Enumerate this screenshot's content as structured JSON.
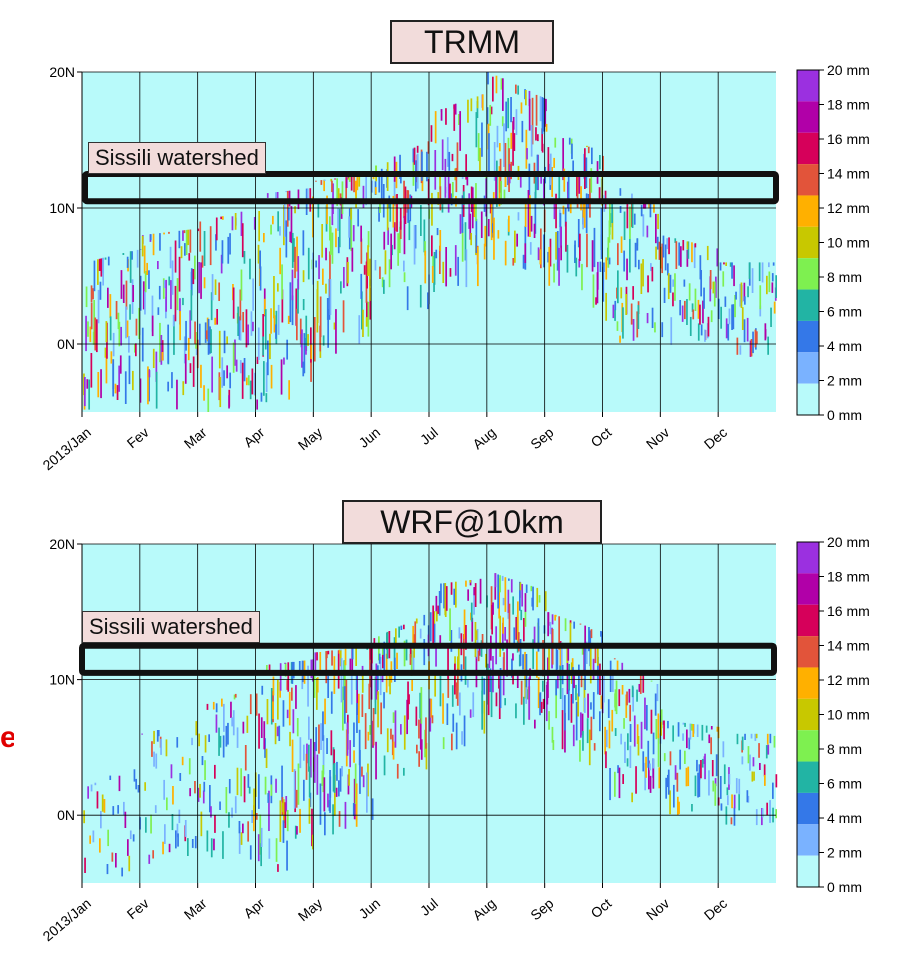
{
  "colorbar": {
    "labels": [
      "20 mm",
      "18 mm",
      "16 mm",
      "14 mm",
      "12 mm",
      "10 mm",
      "8 mm",
      "6 mm",
      "4 mm",
      "2 mm",
      "0 mm"
    ],
    "colors": [
      "#9b30e0",
      "#b100a8",
      "#d6005a",
      "#e2543a",
      "#ffb000",
      "#c8c800",
      "#7ef050",
      "#22b4a4",
      "#3478e8",
      "#7ab2ff",
      "#b8fafa"
    ]
  },
  "side_text": "e",
  "chart_data": [
    {
      "type": "heatmap",
      "title": "TRMM",
      "annotation": "Sissili watershed",
      "xlabel": "",
      "ylabel": "",
      "x_ticks": [
        "2013/Jan",
        "Fev",
        "Mar",
        "Apr",
        "May",
        "Jun",
        "Jul",
        "Aug",
        "Sep",
        "Oct",
        "Nov",
        "Dec"
      ],
      "y_ticks": [
        "20N",
        "10N",
        "0N"
      ],
      "ylim": [
        -5,
        20
      ],
      "watershed_lat": [
        10.5,
        12.5
      ],
      "units": "mm",
      "colorbar_range": [
        0,
        20
      ],
      "monthly_band": [
        {
          "month": "Jan",
          "lat_min": -5,
          "lat_max": 6,
          "intensity": 0.55
        },
        {
          "month": "Fev",
          "lat_min": -5,
          "lat_max": 8,
          "intensity": 0.6
        },
        {
          "month": "Mar",
          "lat_min": -5,
          "lat_max": 9,
          "intensity": 0.6
        },
        {
          "month": "Apr",
          "lat_min": -5,
          "lat_max": 11,
          "intensity": 0.7
        },
        {
          "month": "May",
          "lat_min": -2,
          "lat_max": 12,
          "intensity": 0.7
        },
        {
          "month": "Jun",
          "lat_min": 2,
          "lat_max": 13,
          "intensity": 0.6
        },
        {
          "month": "Jul",
          "lat_min": 3,
          "lat_max": 17,
          "intensity": 0.65
        },
        {
          "month": "Aug",
          "lat_min": 6,
          "lat_max": 20,
          "intensity": 0.75
        },
        {
          "month": "Sep",
          "lat_min": 4,
          "lat_max": 16,
          "intensity": 0.65
        },
        {
          "month": "Oct",
          "lat_min": 0,
          "lat_max": 12,
          "intensity": 0.5
        },
        {
          "month": "Nov",
          "lat_min": 0,
          "lat_max": 8,
          "intensity": 0.4
        },
        {
          "month": "Dec",
          "lat_min": -1,
          "lat_max": 6,
          "intensity": 0.35
        }
      ]
    },
    {
      "type": "heatmap",
      "title": "WRF@10km",
      "annotation": "Sissili watershed",
      "xlabel": "",
      "ylabel": "",
      "x_ticks": [
        "2013/Jan",
        "Fev",
        "Mar",
        "Apr",
        "May",
        "Jun",
        "Jul",
        "Aug",
        "Sep",
        "Oct",
        "Nov",
        "Dec"
      ],
      "y_ticks": [
        "20N",
        "10N",
        "0N"
      ],
      "ylim": [
        -5,
        20
      ],
      "watershed_lat": [
        10.5,
        12.5
      ],
      "units": "mm",
      "colorbar_range": [
        0,
        20
      ],
      "monthly_band": [
        {
          "month": "Jan",
          "lat_min": -5,
          "lat_max": 2,
          "intensity": 0.2
        },
        {
          "month": "Fev",
          "lat_min": -4,
          "lat_max": 6,
          "intensity": 0.25
        },
        {
          "month": "Mar",
          "lat_min": -3,
          "lat_max": 8,
          "intensity": 0.4
        },
        {
          "month": "Apr",
          "lat_min": -5,
          "lat_max": 11,
          "intensity": 0.65
        },
        {
          "month": "May",
          "lat_min": -2,
          "lat_max": 12,
          "intensity": 0.7
        },
        {
          "month": "Jun",
          "lat_min": 1,
          "lat_max": 13,
          "intensity": 0.6
        },
        {
          "month": "Jul",
          "lat_min": 4,
          "lat_max": 17,
          "intensity": 0.6
        },
        {
          "month": "Aug",
          "lat_min": 7,
          "lat_max": 18,
          "intensity": 0.7
        },
        {
          "month": "Sep",
          "lat_min": 5,
          "lat_max": 15,
          "intensity": 0.65
        },
        {
          "month": "Oct",
          "lat_min": 1,
          "lat_max": 12,
          "intensity": 0.5
        },
        {
          "month": "Nov",
          "lat_min": 0,
          "lat_max": 7,
          "intensity": 0.35
        },
        {
          "month": "Dec",
          "lat_min": -1,
          "lat_max": 6,
          "intensity": 0.3
        }
      ]
    }
  ]
}
